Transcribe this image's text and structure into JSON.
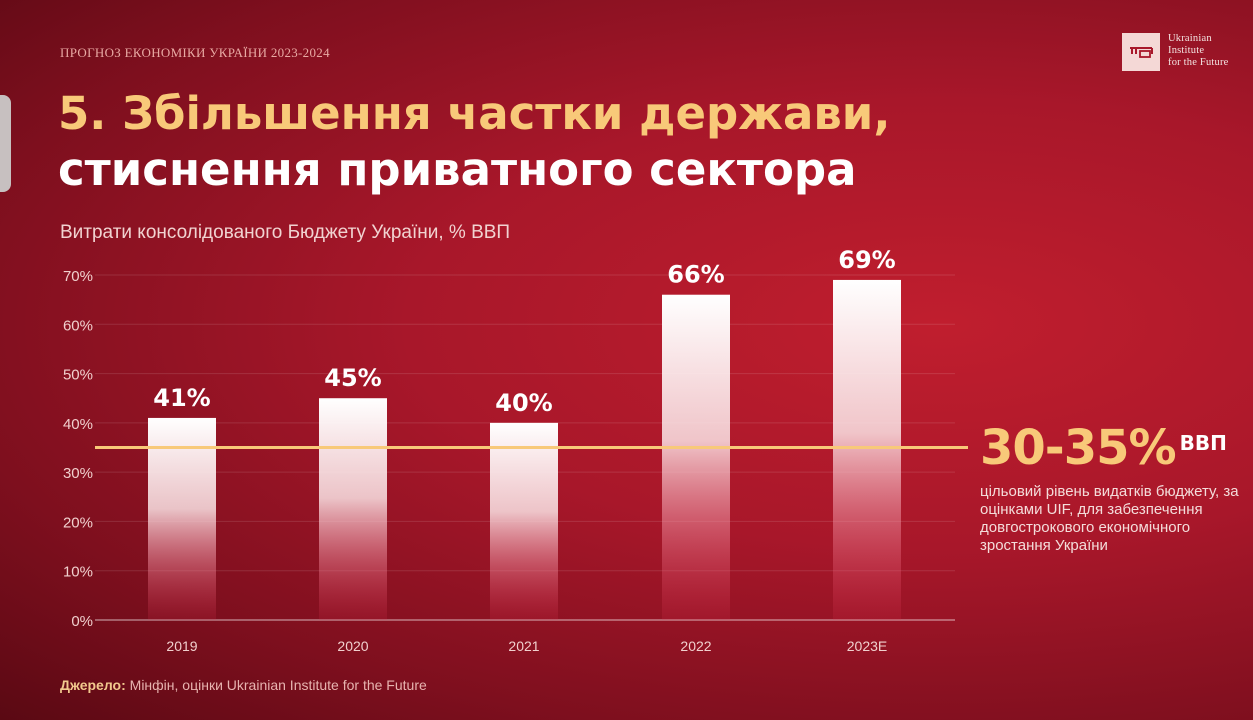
{
  "header": {
    "kicker": "ПРОГНОЗ ЕКОНОМІКИ УКРАЇНИ 2023-2024",
    "title_line1": "5. Збільшення частки держави,",
    "title_line2": "стиснення приватного сектора"
  },
  "logo": {
    "icon": "key-logo-icon",
    "line1": "Ukrainian",
    "line2": "Institute",
    "line3": "for the Future"
  },
  "source": {
    "label": "Джерело:",
    "text": " Мінфін, оцінки Ukrainian Institute for the Future"
  },
  "target": {
    "value": "30-35%",
    "unit": "ВВП",
    "description": "цільовий рівень видатків бюджету, за оцінками UIF, для забезпечення довгострокового економічного зростання України"
  },
  "colors": {
    "accent": "#f8c979",
    "bar": "#ffffff",
    "background": "#a8172a"
  },
  "chart_data": {
    "type": "bar",
    "title": "Витрати консолідованого Бюджету України, % ВВП",
    "categories": [
      "2019",
      "2020",
      "2021",
      "2022",
      "2023E"
    ],
    "values": [
      41,
      45,
      40,
      66,
      69
    ],
    "value_labels": [
      "41%",
      "45%",
      "40%",
      "66%",
      "69%"
    ],
    "yticks": [
      0,
      10,
      20,
      30,
      40,
      50,
      60,
      70
    ],
    "ytick_labels": [
      "0%",
      "10%",
      "20%",
      "30%",
      "40%",
      "50%",
      "60%",
      "70%"
    ],
    "ylim": [
      0,
      70
    ],
    "reference_line": 35,
    "grid": true
  }
}
